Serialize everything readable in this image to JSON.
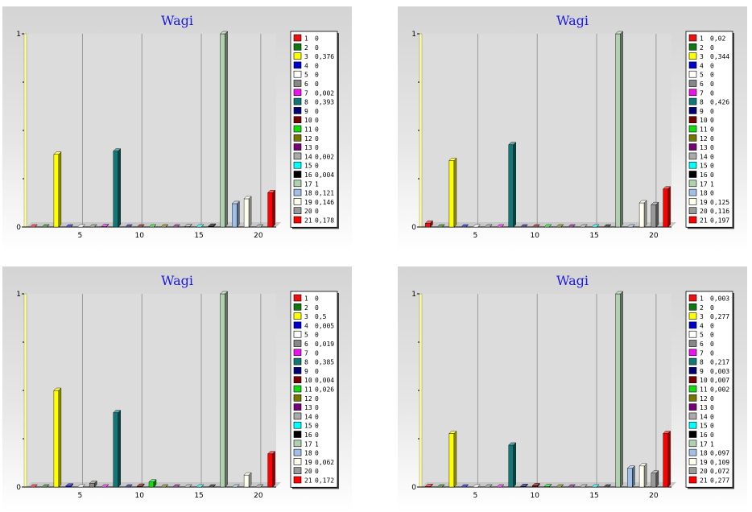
{
  "colors": [
    "#ee1111",
    "#117711",
    "#ffff00",
    "#0000cc",
    "#ffffff",
    "#888888",
    "#ee11ee",
    "#117777",
    "#000077",
    "#770000",
    "#11dd11",
    "#777700",
    "#770077",
    "#aaaaaa",
    "#00ffff",
    "#000000",
    "#b0d0b0",
    "#a0c0e8",
    "#ffffee",
    "#999999",
    "#ff0000"
  ],
  "chart_data": [
    {
      "type": "bar",
      "title": "Wagi",
      "categories": [
        "1",
        "2",
        "3",
        "4",
        "5",
        "6",
        "7",
        "8",
        "9",
        "10",
        "11",
        "12",
        "13",
        "14",
        "15",
        "16",
        "17",
        "18",
        "19",
        "20",
        "21"
      ],
      "x_ticks": [
        "5",
        "10",
        "15",
        "20"
      ],
      "y_ticks": [
        "0",
        "1"
      ],
      "ylim": [
        0,
        1
      ],
      "values": [
        0,
        0,
        0.376,
        0,
        0,
        0,
        0.002,
        0.393,
        0,
        0,
        0,
        0,
        0,
        0.002,
        0,
        0.004,
        1,
        0.121,
        0.146,
        0,
        0.178
      ],
      "legend": [
        {
          "key": "1",
          "value": "0"
        },
        {
          "key": "2",
          "value": "0"
        },
        {
          "key": "3",
          "value": "0,376"
        },
        {
          "key": "4",
          "value": "0"
        },
        {
          "key": "5",
          "value": "0"
        },
        {
          "key": "6",
          "value": "0"
        },
        {
          "key": "7",
          "value": "0,002"
        },
        {
          "key": "8",
          "value": "0,393"
        },
        {
          "key": "9",
          "value": "0"
        },
        {
          "key": "10",
          "value": "0"
        },
        {
          "key": "11",
          "value": "0"
        },
        {
          "key": "12",
          "value": "0"
        },
        {
          "key": "13",
          "value": "0"
        },
        {
          "key": "14",
          "value": "0,002"
        },
        {
          "key": "15",
          "value": "0"
        },
        {
          "key": "16",
          "value": "0,004"
        },
        {
          "key": "17",
          "value": "1"
        },
        {
          "key": "18",
          "value": "0,121"
        },
        {
          "key": "19",
          "value": "0,146"
        },
        {
          "key": "20",
          "value": "0"
        },
        {
          "key": "21",
          "value": "0,178"
        }
      ]
    },
    {
      "type": "bar",
      "title": "Wagi",
      "categories": [
        "1",
        "2",
        "3",
        "4",
        "5",
        "6",
        "7",
        "8",
        "9",
        "10",
        "11",
        "12",
        "13",
        "14",
        "15",
        "16",
        "17",
        "18",
        "19",
        "20",
        "21"
      ],
      "x_ticks": [
        "5",
        "10",
        "15",
        "20"
      ],
      "y_ticks": [
        "0",
        "1"
      ],
      "ylim": [
        0,
        1
      ],
      "values": [
        0.02,
        0,
        0.344,
        0,
        0,
        0,
        0,
        0.426,
        0,
        0,
        0,
        0,
        0,
        0,
        0,
        0,
        1,
        0,
        0.125,
        0.116,
        0.197
      ],
      "legend": [
        {
          "key": "1",
          "value": "0,02"
        },
        {
          "key": "2",
          "value": "0"
        },
        {
          "key": "3",
          "value": "0,344"
        },
        {
          "key": "4",
          "value": "0"
        },
        {
          "key": "5",
          "value": "0"
        },
        {
          "key": "6",
          "value": "0"
        },
        {
          "key": "7",
          "value": "0"
        },
        {
          "key": "8",
          "value": "0,426"
        },
        {
          "key": "9",
          "value": "0"
        },
        {
          "key": "10",
          "value": "0"
        },
        {
          "key": "11",
          "value": "0"
        },
        {
          "key": "12",
          "value": "0"
        },
        {
          "key": "13",
          "value": "0"
        },
        {
          "key": "14",
          "value": "0"
        },
        {
          "key": "15",
          "value": "0"
        },
        {
          "key": "16",
          "value": "0"
        },
        {
          "key": "17",
          "value": "1"
        },
        {
          "key": "18",
          "value": "0"
        },
        {
          "key": "19",
          "value": "0,125"
        },
        {
          "key": "20",
          "value": "0,116"
        },
        {
          "key": "21",
          "value": "0,197"
        }
      ]
    },
    {
      "type": "bar",
      "title": "Wagi",
      "categories": [
        "1",
        "2",
        "3",
        "4",
        "5",
        "6",
        "7",
        "8",
        "9",
        "10",
        "11",
        "12",
        "13",
        "14",
        "15",
        "16",
        "17",
        "18",
        "19",
        "20",
        "21"
      ],
      "x_ticks": [
        "5",
        "10",
        "15",
        "20"
      ],
      "y_ticks": [
        "0",
        "1"
      ],
      "ylim": [
        0,
        1
      ],
      "values": [
        0,
        0,
        0.5,
        0.005,
        0,
        0.019,
        0,
        0.385,
        0,
        0.004,
        0.026,
        0,
        0,
        0,
        0,
        0,
        1,
        0,
        0.062,
        0,
        0.172
      ],
      "legend": [
        {
          "key": "1",
          "value": "0"
        },
        {
          "key": "2",
          "value": "0"
        },
        {
          "key": "3",
          "value": "0,5"
        },
        {
          "key": "4",
          "value": "0,005"
        },
        {
          "key": "5",
          "value": "0"
        },
        {
          "key": "6",
          "value": "0,019"
        },
        {
          "key": "7",
          "value": "0"
        },
        {
          "key": "8",
          "value": "0,385"
        },
        {
          "key": "9",
          "value": "0"
        },
        {
          "key": "10",
          "value": "0,004"
        },
        {
          "key": "11",
          "value": "0,026"
        },
        {
          "key": "12",
          "value": "0"
        },
        {
          "key": "13",
          "value": "0"
        },
        {
          "key": "14",
          "value": "0"
        },
        {
          "key": "15",
          "value": "0"
        },
        {
          "key": "16",
          "value": "0"
        },
        {
          "key": "17",
          "value": "1"
        },
        {
          "key": "18",
          "value": "0"
        },
        {
          "key": "19",
          "value": "0,062"
        },
        {
          "key": "20",
          "value": "0"
        },
        {
          "key": "21",
          "value": "0,172"
        }
      ]
    },
    {
      "type": "bar",
      "title": "Wagi",
      "categories": [
        "1",
        "2",
        "3",
        "4",
        "5",
        "6",
        "7",
        "8",
        "9",
        "10",
        "11",
        "12",
        "13",
        "14",
        "15",
        "16",
        "17",
        "18",
        "19",
        "20",
        "21"
      ],
      "x_ticks": [
        "5",
        "10",
        "15",
        "20"
      ],
      "y_ticks": [
        "0",
        "1"
      ],
      "ylim": [
        0,
        1
      ],
      "values": [
        0.003,
        0,
        0.277,
        0,
        0,
        0,
        0,
        0.217,
        0.003,
        0.007,
        0.002,
        0,
        0,
        0,
        0,
        0,
        1,
        0.097,
        0.109,
        0.072,
        0.277
      ],
      "legend": [
        {
          "key": "1",
          "value": "0,003"
        },
        {
          "key": "2",
          "value": "0"
        },
        {
          "key": "3",
          "value": "0,277"
        },
        {
          "key": "4",
          "value": "0"
        },
        {
          "key": "5",
          "value": "0"
        },
        {
          "key": "6",
          "value": "0"
        },
        {
          "key": "7",
          "value": "0"
        },
        {
          "key": "8",
          "value": "0,217"
        },
        {
          "key": "9",
          "value": "0,003"
        },
        {
          "key": "10",
          "value": "0,007"
        },
        {
          "key": "11",
          "value": "0,002"
        },
        {
          "key": "12",
          "value": "0"
        },
        {
          "key": "13",
          "value": "0"
        },
        {
          "key": "14",
          "value": "0"
        },
        {
          "key": "15",
          "value": "0"
        },
        {
          "key": "16",
          "value": "0"
        },
        {
          "key": "17",
          "value": "1"
        },
        {
          "key": "18",
          "value": "0,097"
        },
        {
          "key": "19",
          "value": "0,109"
        },
        {
          "key": "20",
          "value": "0,072"
        },
        {
          "key": "21",
          "value": "0,277"
        }
      ]
    }
  ]
}
